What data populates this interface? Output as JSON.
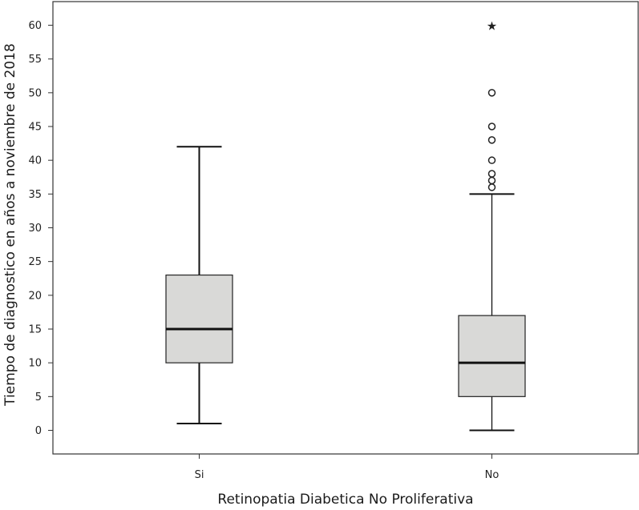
{
  "chart_data": {
    "type": "boxplot",
    "xlabel": "Retinopatia Diabetica No Proliferativa",
    "ylabel": "Tiempo de diagnostico en  años a noviembre de 2018",
    "ylim": [
      -3.5,
      63.5
    ],
    "yticks": [
      0,
      5,
      10,
      15,
      20,
      25,
      30,
      35,
      40,
      45,
      50,
      55,
      60
    ],
    "categories": [
      "Si",
      "No"
    ],
    "box_fill": "#d9d9d7",
    "line_color": "#111111",
    "boxes": [
      {
        "category": "Si",
        "min": 1,
        "q1": 10,
        "median": 15,
        "q3": 23,
        "max": 42,
        "outliers": [],
        "extremes": []
      },
      {
        "category": "No",
        "min": 0,
        "q1": 5,
        "median": 10,
        "q3": 17,
        "max": 35,
        "outliers": [
          36,
          37,
          38,
          40,
          43,
          45,
          50
        ],
        "extremes": [
          60
        ]
      }
    ]
  }
}
